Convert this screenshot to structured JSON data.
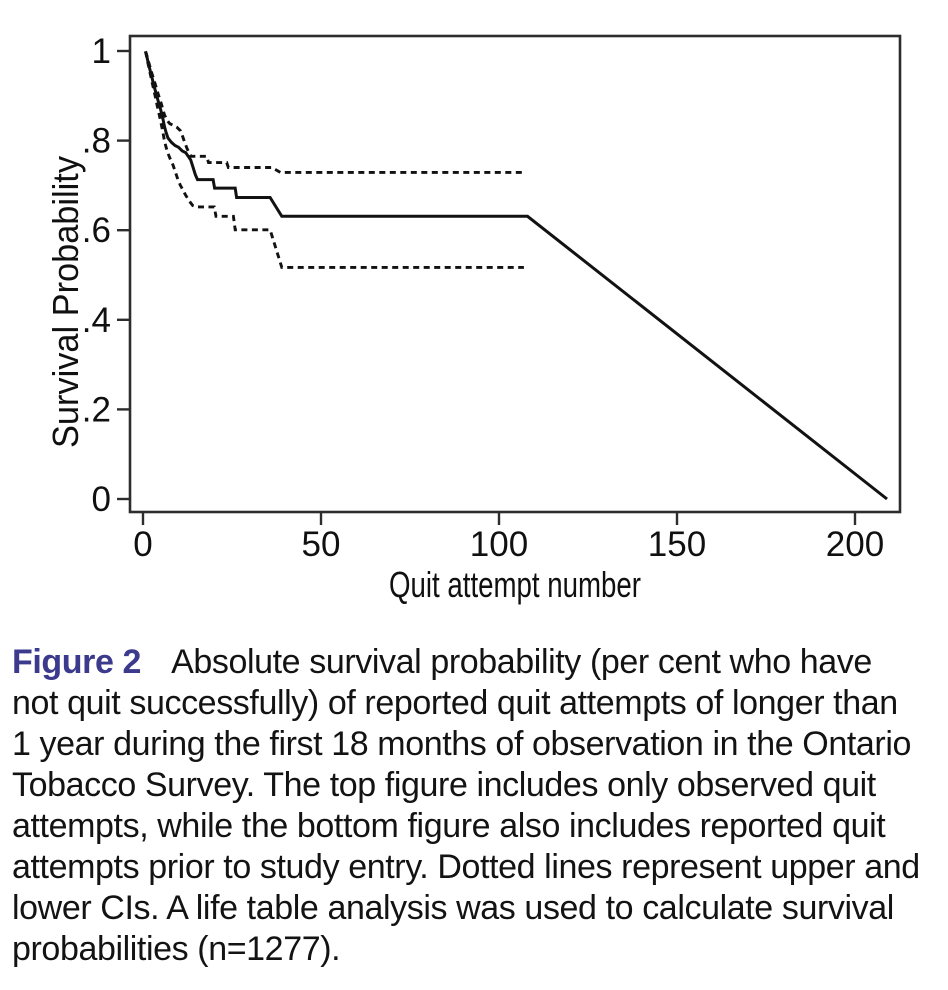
{
  "page": {
    "background": "#ffffff"
  },
  "chart_data": {
    "type": "line",
    "title": "",
    "xlabel": "Quit attempt number",
    "ylabel": "Survival Probability",
    "x_ticks": {
      "values": [
        0,
        50,
        100,
        150,
        200
      ],
      "labels": [
        "0",
        "50",
        "100",
        "150",
        "200"
      ]
    },
    "y_ticks": {
      "values": [
        1,
        0.8,
        0.6,
        0.4,
        0.2,
        0
      ],
      "labels": [
        "1",
        ".8",
        ".6",
        ".4",
        ".2",
        "0"
      ]
    },
    "xlim": [
      -3.7,
      213
    ],
    "ylim": [
      -0.03,
      1.04
    ],
    "grid": false,
    "legend": "none",
    "frame": true,
    "line_color": "#121212",
    "axis_color": "#2d2d2d",
    "text_color": "#101010",
    "series": [
      {
        "name": "survival-estimate",
        "style": "solid",
        "points": [
          [
            0.7,
            0.999
          ],
          [
            1,
            0.99
          ],
          [
            1.5,
            0.973
          ],
          [
            2,
            0.957
          ],
          [
            2.5,
            0.941
          ],
          [
            3,
            0.925
          ],
          [
            3.5,
            0.91
          ],
          [
            4,
            0.896
          ],
          [
            4.5,
            0.882
          ],
          [
            5,
            0.868
          ],
          [
            5.5,
            0.852
          ],
          [
            6,
            0.832
          ],
          [
            6.5,
            0.818
          ],
          [
            7,
            0.806
          ],
          [
            8,
            0.796
          ],
          [
            9,
            0.789
          ],
          [
            10,
            0.785
          ],
          [
            11,
            0.777
          ],
          [
            12,
            0.773
          ],
          [
            12.7,
            0.765
          ],
          [
            13.4,
            0.757
          ],
          [
            14,
            0.742
          ],
          [
            14.7,
            0.724
          ],
          [
            15.3,
            0.713
          ],
          [
            19.7,
            0.713
          ],
          [
            20.1,
            0.694
          ],
          [
            25.9,
            0.694
          ],
          [
            26.3,
            0.673
          ],
          [
            35.7,
            0.673
          ],
          [
            39,
            0.631
          ],
          [
            108,
            0.631
          ],
          [
            209,
            0
          ]
        ]
      },
      {
        "name": "upper-ci",
        "style": "dashed",
        "points": [
          [
            0.7,
            0.999
          ],
          [
            1,
            0.992
          ],
          [
            1.5,
            0.978
          ],
          [
            2,
            0.964
          ],
          [
            2.5,
            0.95
          ],
          [
            3,
            0.937
          ],
          [
            3.5,
            0.924
          ],
          [
            4,
            0.911
          ],
          [
            4.5,
            0.898
          ],
          [
            5,
            0.886
          ],
          [
            5.5,
            0.872
          ],
          [
            6,
            0.858
          ],
          [
            6.5,
            0.85
          ],
          [
            7,
            0.843
          ],
          [
            7.5,
            0.838
          ],
          [
            8.5,
            0.834
          ],
          [
            9.5,
            0.83
          ],
          [
            10.5,
            0.822
          ],
          [
            11,
            0.812
          ],
          [
            11.7,
            0.796
          ],
          [
            12.4,
            0.782
          ],
          [
            13,
            0.772
          ],
          [
            13.5,
            0.765
          ],
          [
            17.9,
            0.765
          ],
          [
            18.4,
            0.751
          ],
          [
            23.5,
            0.751
          ],
          [
            24,
            0.74
          ],
          [
            36.2,
            0.74
          ],
          [
            38.6,
            0.729
          ],
          [
            107.5,
            0.729
          ]
        ]
      },
      {
        "name": "lower-ci",
        "style": "dashed",
        "points": [
          [
            0.7,
            0.999
          ],
          [
            1,
            0.988
          ],
          [
            1.5,
            0.969
          ],
          [
            2,
            0.951
          ],
          [
            2.5,
            0.932
          ],
          [
            3,
            0.914
          ],
          [
            3.5,
            0.896
          ],
          [
            4,
            0.878
          ],
          [
            4.5,
            0.86
          ],
          [
            5,
            0.842
          ],
          [
            5.5,
            0.822
          ],
          [
            6,
            0.8
          ],
          [
            6.5,
            0.785
          ],
          [
            7,
            0.772
          ],
          [
            7.7,
            0.758
          ],
          [
            8.4,
            0.746
          ],
          [
            9.1,
            0.73
          ],
          [
            9.8,
            0.713
          ],
          [
            10.5,
            0.7
          ],
          [
            11.2,
            0.69
          ],
          [
            12,
            0.678
          ],
          [
            13,
            0.665
          ],
          [
            14,
            0.655
          ],
          [
            15,
            0.652
          ],
          [
            20,
            0.652
          ],
          [
            20.5,
            0.631
          ],
          [
            25.4,
            0.631
          ],
          [
            25.9,
            0.601
          ],
          [
            35.7,
            0.601
          ],
          [
            39,
            0.517
          ],
          [
            107,
            0.517
          ]
        ]
      }
    ]
  },
  "caption": {
    "label": "Figure 2",
    "label_color": "#3b3a8c",
    "lines": [
      "Absolute survival probability (per cent who have",
      "not quit successfully) of reported quit attempts of longer than",
      "1 year during the first 18 months of observation in the Ontario",
      "Tobacco Survey. The top figure includes only observed quit",
      "attempts, while the bottom figure also includes reported quit",
      "attempts prior to study entry. Dotted lines represent upper and",
      "lower CIs. A life table analysis was used to calculate survival",
      "probabilities (n=1277)."
    ]
  }
}
